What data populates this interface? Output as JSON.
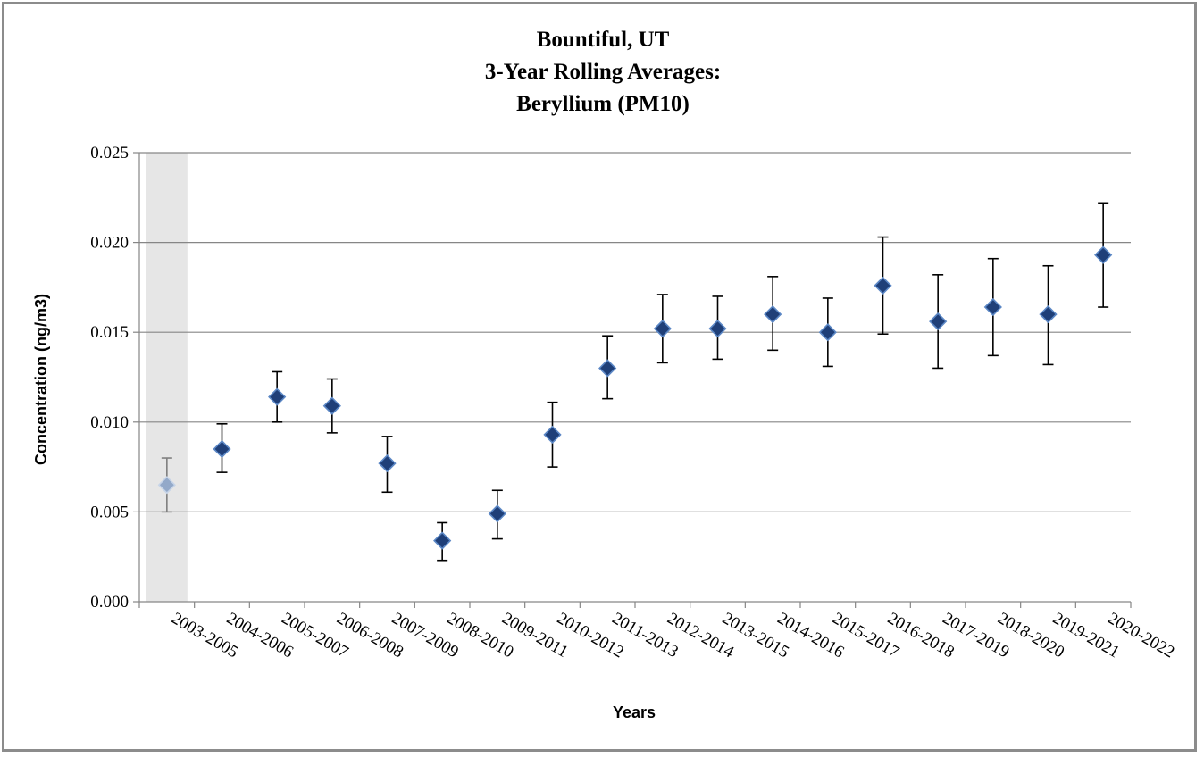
{
  "chart_data": {
    "type": "scatter",
    "title_lines": [
      "Bountiful, UT",
      "3-Year Rolling Averages:",
      "Beryllium (PM10)"
    ],
    "xlabel": "Years",
    "ylabel": "Concentration (ng/m3)",
    "ylim": [
      0,
      0.025
    ],
    "y_ticks": [
      "0.000",
      "0.005",
      "0.010",
      "0.015",
      "0.020",
      "0.025"
    ],
    "y_tick_values": [
      0,
      0.005,
      0.01,
      0.015,
      0.02,
      0.025
    ],
    "grid": "horizontal",
    "categories": [
      "2003-2005",
      "2004-2006",
      "2005-2007",
      "2006-2008",
      "2007-2009",
      "2008-2010",
      "2009-2011",
      "2010-2012",
      "2011-2013",
      "2012-2014",
      "2013-2015",
      "2014-2016",
      "2015-2017",
      "2016-2018",
      "2017-2019",
      "2018-2020",
      "2019-2021",
      "2020-2022"
    ],
    "values": [
      0.0065,
      0.0085,
      0.0114,
      0.0109,
      0.0077,
      0.0034,
      0.0049,
      0.0093,
      0.013,
      0.0152,
      0.0152,
      0.016,
      0.015,
      0.0176,
      0.0156,
      0.0164,
      0.016,
      0.0193
    ],
    "error_low": [
      0.005,
      0.0072,
      0.01,
      0.0094,
      0.0061,
      0.0023,
      0.0035,
      0.0075,
      0.0113,
      0.0133,
      0.0135,
      0.014,
      0.0131,
      0.0149,
      0.013,
      0.0137,
      0.0132,
      0.0164
    ],
    "error_high": [
      0.008,
      0.0099,
      0.0128,
      0.0124,
      0.0092,
      0.0044,
      0.0062,
      0.0111,
      0.0148,
      0.0171,
      0.017,
      0.0181,
      0.0169,
      0.0203,
      0.0182,
      0.0191,
      0.0187,
      0.0222
    ],
    "highlighted_categories": [
      "2003-2005"
    ],
    "colors": {
      "marker": "#1f3f78",
      "marker_edge": "#5b87c5",
      "marker_faded": "#93a9c9",
      "marker_faded_edge": "#c6d4e8",
      "error_bar": "#000000",
      "error_bar_faded": "#7f7f7f",
      "highlight_band": "#e6e6e6",
      "gridline": "#868686"
    }
  }
}
